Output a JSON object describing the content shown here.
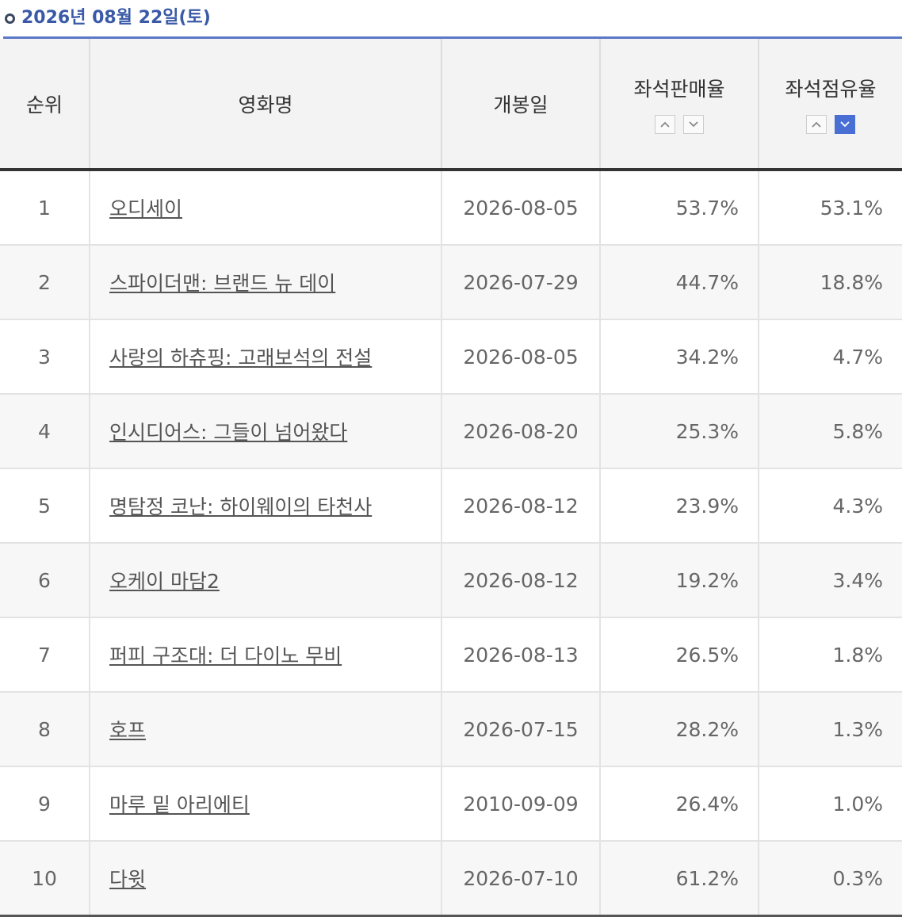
{
  "header": {
    "title": "2026년 08월 22일(토)"
  },
  "table": {
    "columns": [
      "순위",
      "영화명",
      "개봉일",
      "좌석판매율",
      "좌석점유율"
    ],
    "rows": [
      [
        1,
        "오디세이",
        "2026-08-05",
        "53.7%",
        "53.1%"
      ],
      [
        2,
        "스파이더맨: 브랜드 뉴 데이",
        "2026-07-29",
        "44.7%",
        "18.8%"
      ],
      [
        3,
        "사랑의 하츄핑: 고래보석의 전설",
        "2026-08-05",
        "34.2%",
        "4.7%"
      ],
      [
        4,
        "인시디어스: 그들이 넘어왔다",
        "2026-08-20",
        "25.3%",
        "5.8%"
      ],
      [
        5,
        "명탐정 코난: 하이웨이의 타천사",
        "2026-08-12",
        "23.9%",
        "4.3%"
      ],
      [
        6,
        "오케이 마담2",
        "2026-08-12",
        "19.2%",
        "3.4%"
      ],
      [
        7,
        "퍼피 구조대: 더 다이노 무비",
        "2026-08-13",
        "26.5%",
        "1.8%"
      ],
      [
        8,
        "호프",
        "2026-07-15",
        "28.2%",
        "1.3%"
      ],
      [
        9,
        "마루 밑 아리에티",
        "2010-09-09",
        "26.4%",
        "1.0%"
      ],
      [
        10,
        "다윗",
        "2026-07-10",
        "61.2%",
        "0.3%"
      ]
    ]
  }
}
